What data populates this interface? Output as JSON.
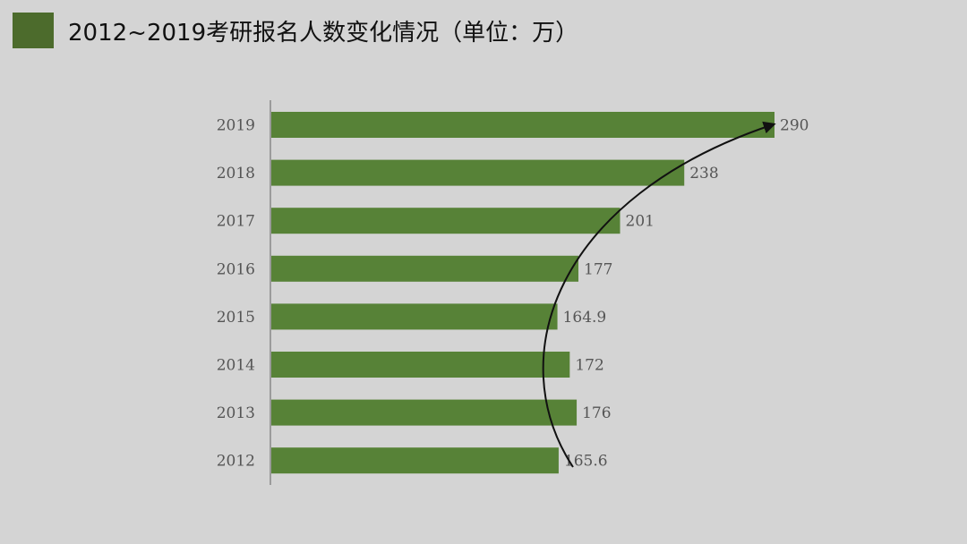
{
  "title": "2012~2019考研报名人数变化情况（单位：万）",
  "colors": {
    "title_swatch": "#4c6b2c",
    "bar": "#578237",
    "axis": "#888888",
    "trend_arrow": "#111111",
    "background": "#d4d4d4"
  },
  "chart_data": {
    "type": "bar",
    "orientation": "horizontal",
    "categories": [
      "2019",
      "2018",
      "2017",
      "2016",
      "2015",
      "2014",
      "2013",
      "2012"
    ],
    "values": [
      290,
      238,
      201,
      177,
      164.9,
      172,
      176,
      165.6
    ],
    "value_labels": [
      "290",
      "238",
      "201",
      "177",
      "164.9",
      "172",
      "176",
      "165.6"
    ],
    "xlim": [
      0,
      290
    ],
    "grid": false,
    "legend": "none",
    "annotation": "curved trend arrow from 2012 bar up to 2019 bar"
  }
}
